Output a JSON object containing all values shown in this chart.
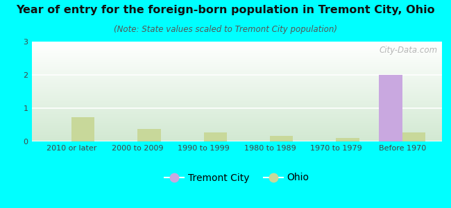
{
  "title": "Year of entry for the foreign-born population in Tremont City, Ohio",
  "subtitle": "(Note: State values scaled to Tremont City population)",
  "categories": [
    "2010 or later",
    "2000 to 2009",
    "1990 to 1999",
    "1980 to 1989",
    "1970 to 1979",
    "Before 1970"
  ],
  "tremont_city_values": [
    0,
    0,
    0,
    0,
    0,
    2.0
  ],
  "ohio_values": [
    0.72,
    0.37,
    0.27,
    0.17,
    0.11,
    0.27
  ],
  "tremont_color": "#c9a8e0",
  "ohio_color": "#c8d89a",
  "background_color": "#00ffff",
  "ylim": [
    0,
    3
  ],
  "yticks": [
    0,
    1,
    2,
    3
  ],
  "bar_width": 0.35,
  "title_fontsize": 11.5,
  "subtitle_fontsize": 8.5,
  "tick_fontsize": 8,
  "legend_fontsize": 10,
  "watermark": "City-Data.com"
}
